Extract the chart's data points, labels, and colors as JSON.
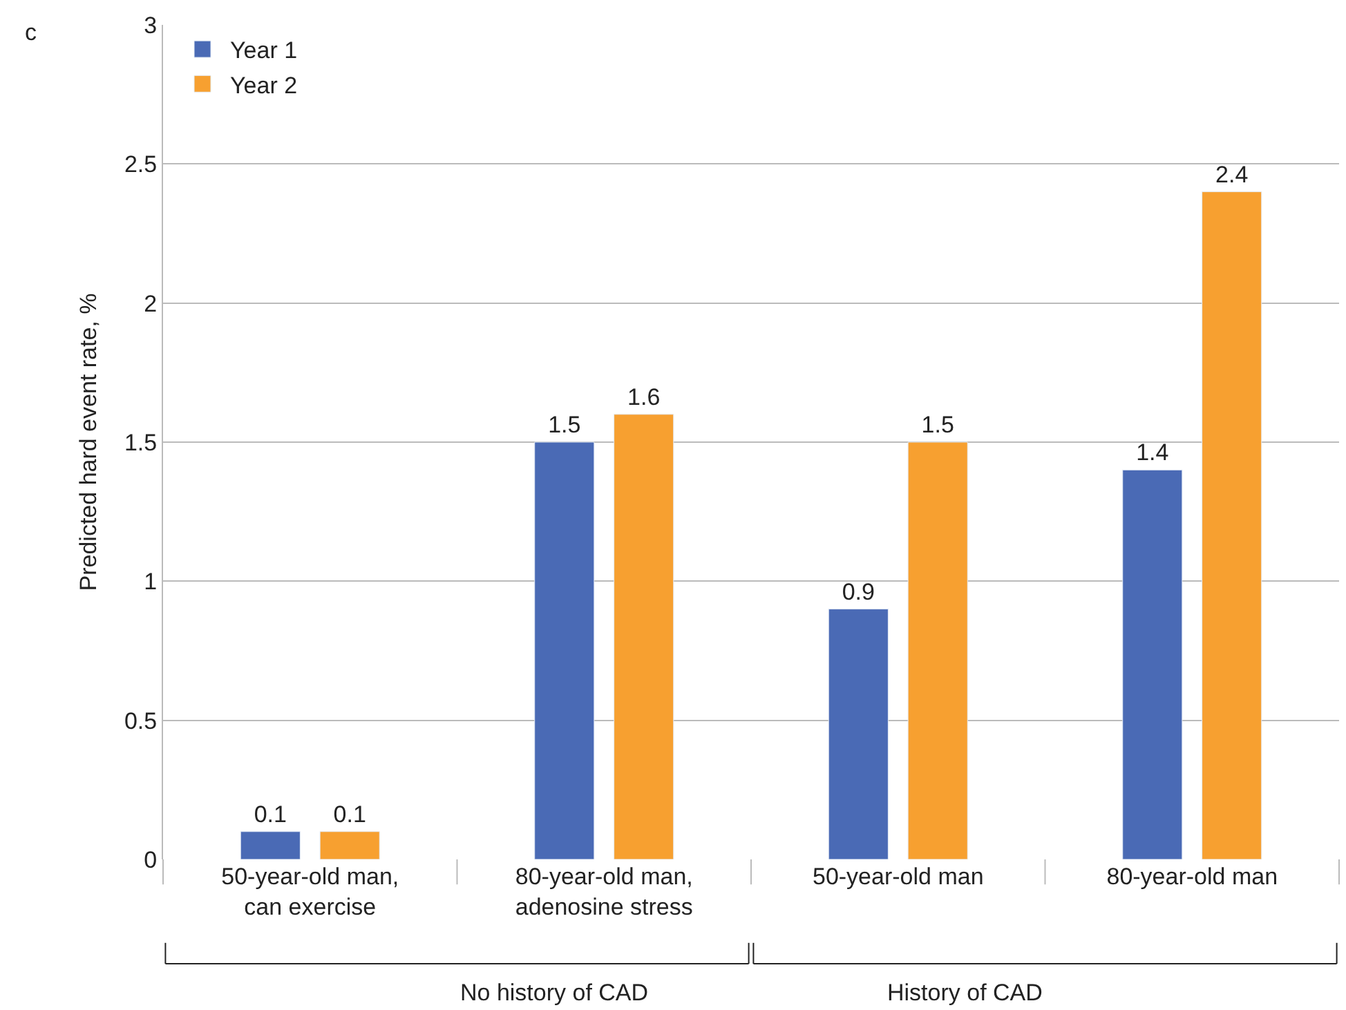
{
  "chart_data": {
    "type": "bar",
    "ylabel": "Predicted hard event rate, %",
    "categories": [
      "50-year-old man,\ncan exercise",
      "80-year-old man,\nadenosine stress",
      "50-year-old man",
      "80-year-old man"
    ],
    "series": [
      {
        "name": "Year 1",
        "color": "#4a6ab5",
        "values": [
          0.1,
          1.5,
          0.9,
          1.4
        ]
      },
      {
        "name": "Year 2",
        "color": "#f7a030",
        "values": [
          0.1,
          1.6,
          1.5,
          2.4
        ]
      }
    ],
    "ylim": [
      0,
      3
    ],
    "yticks": [
      0,
      0.5,
      1,
      1.5,
      2,
      2.5,
      3
    ],
    "grid": "y",
    "legend": "top left",
    "data_labels": true,
    "annotations": [
      "c",
      "No history of CAD",
      "History of CAD"
    ]
  }
}
